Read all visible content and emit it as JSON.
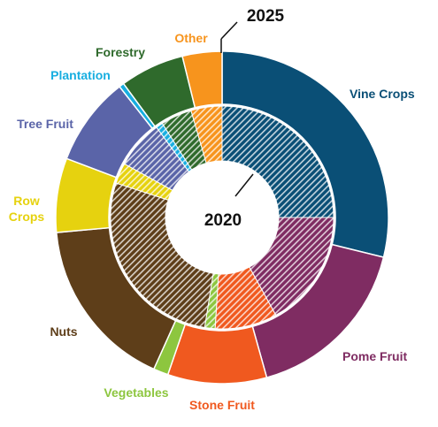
{
  "chart_data": {
    "type": "pie",
    "subtype": "nested-donut",
    "categories": [
      "Vine Crops",
      "Pome Fruit",
      "Stone Fruit",
      "Vegetables",
      "Nuts",
      "Row Crops",
      "Tree Fruit",
      "Plantation",
      "Forestry",
      "Other"
    ],
    "colors": [
      "#0a4f76",
      "#7f2c62",
      "#f0591f",
      "#8dc63f",
      "#5e3e19",
      "#e6d20f",
      "#5a64a8",
      "#18aee0",
      "#2f6a2c",
      "#f7941d"
    ],
    "series": [
      {
        "name": "2025",
        "ring": "outer",
        "values": [
          30.0,
          17.5,
          10.0,
          1.5,
          17.5,
          7.5,
          9.0,
          0.5,
          6.5,
          4.0
        ]
      },
      {
        "name": "2020",
        "ring": "inner",
        "pattern": "hatched",
        "values": [
          25.0,
          17.0,
          9.0,
          1.5,
          27.5,
          3.0,
          7.0,
          1.0,
          4.5,
          4.5
        ]
      }
    ],
    "annotations": {
      "outer_year": "2025",
      "inner_year": "2020"
    }
  }
}
